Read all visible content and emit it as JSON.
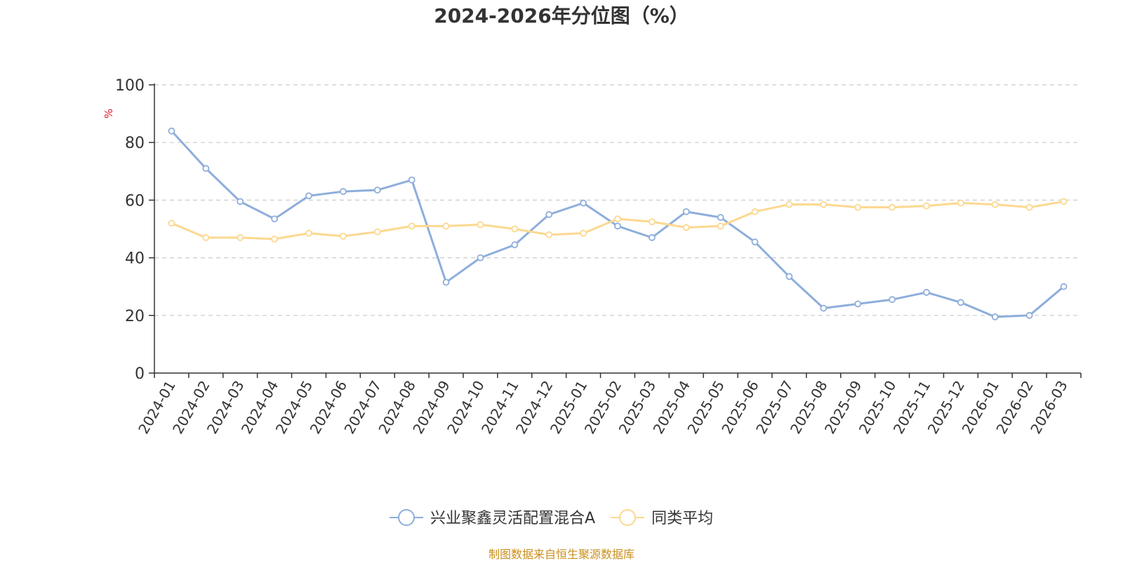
{
  "chart_data": {
    "type": "line",
    "title": "2024-2026年分位图（%）",
    "ylabel": "%",
    "ylim": [
      0,
      100
    ],
    "yticks": [
      0,
      20,
      40,
      60,
      80,
      100
    ],
    "grid": "horizontal dashed",
    "legend_position": "bottom-center",
    "categories": [
      "2024-01",
      "2024-02",
      "2024-03",
      "2024-04",
      "2024-05",
      "2024-06",
      "2024-07",
      "2024-08",
      "2024-09",
      "2024-10",
      "2024-11",
      "2024-12",
      "2025-01",
      "2025-02",
      "2025-03",
      "2025-04",
      "2025-05",
      "2025-06",
      "2025-07",
      "2025-08",
      "2025-09",
      "2025-10",
      "2025-11",
      "2025-12",
      "2026-01",
      "2026-02",
      "2026-03"
    ],
    "series": [
      {
        "name": "兴业聚鑫灵活配置混合A",
        "color": "#8eaedb",
        "values": [
          84,
          71,
          59.5,
          53.5,
          61.5,
          63,
          63.5,
          67,
          31.5,
          40,
          44.5,
          55,
          59,
          51,
          47,
          56,
          54,
          45.5,
          33.5,
          22.5,
          24,
          25.5,
          28,
          24.5,
          19.5,
          20,
          30
        ]
      },
      {
        "name": "同类平均",
        "color": "#fcd88f",
        "values": [
          52,
          47,
          47,
          46.5,
          48.5,
          47.5,
          49,
          51,
          51,
          51.5,
          50,
          48,
          48.5,
          53.5,
          52.5,
          50.5,
          51,
          56,
          58.5,
          58.5,
          57.5,
          57.5,
          58,
          59,
          58.5,
          57.5,
          59.5
        ]
      }
    ],
    "source": "制图数据来自恒生聚源数据库"
  }
}
